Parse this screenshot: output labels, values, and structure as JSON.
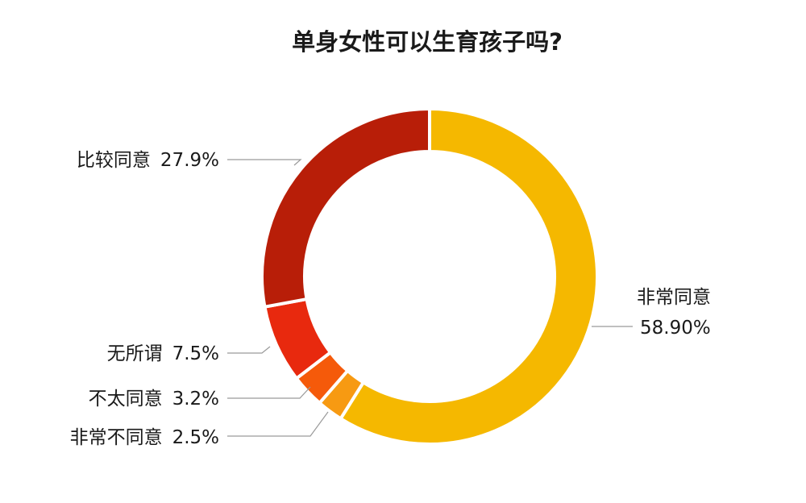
{
  "chart_data": {
    "type": "pie",
    "variant": "donut",
    "title": "单身女性可以生育孩子吗?",
    "slices": [
      {
        "name": "非常同意",
        "value_label": "58.90%",
        "value": 58.9,
        "color": "#F5B800"
      },
      {
        "name": "非常不同意",
        "value_label": "2.5%",
        "value": 2.5,
        "color": "#F79A12"
      },
      {
        "name": "不太同意",
        "value_label": "3.2%",
        "value": 3.2,
        "color": "#F55A0A"
      },
      {
        "name": "无所谓",
        "value_label": "7.5%",
        "value": 7.5,
        "color": "#E8290E"
      },
      {
        "name": "比较同意",
        "value_label": "27.9%",
        "value": 27.9,
        "color": "#B81E08"
      }
    ],
    "start": "top, clockwise",
    "legend": "none"
  }
}
